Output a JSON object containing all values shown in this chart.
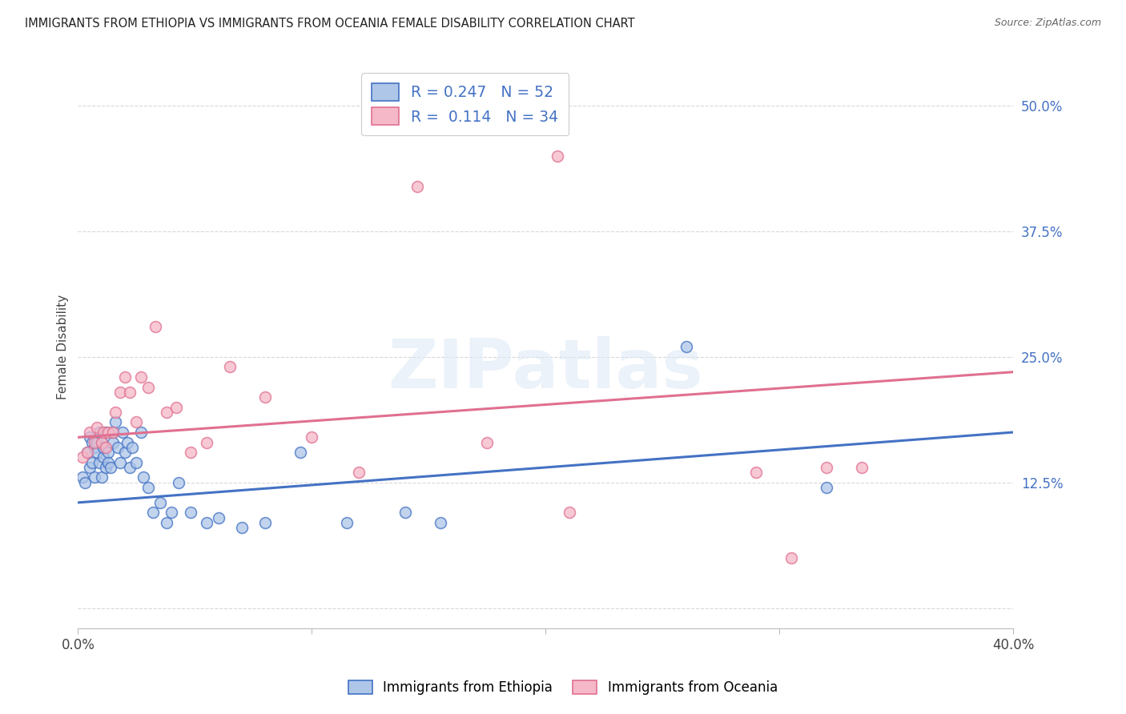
{
  "title": "IMMIGRANTS FROM ETHIOPIA VS IMMIGRANTS FROM OCEANIA FEMALE DISABILITY CORRELATION CHART",
  "source": "Source: ZipAtlas.com",
  "ylabel": "Female Disability",
  "ytick_labels": [
    "",
    "12.5%",
    "25.0%",
    "37.5%",
    "50.0%"
  ],
  "ytick_values": [
    0.0,
    0.125,
    0.25,
    0.375,
    0.5
  ],
  "xlim": [
    0.0,
    0.4
  ],
  "ylim": [
    -0.02,
    0.54
  ],
  "watermark_text": "ZIPatlas",
  "ethiopia_R": 0.247,
  "ethiopia_N": 52,
  "oceania_R": 0.114,
  "oceania_N": 34,
  "ethiopia_color": "#aec6e8",
  "oceania_color": "#f5b8c8",
  "ethiopia_line_color": "#4472c4",
  "oceania_line_color": "#e07090",
  "ethiopia_x": [
    0.002,
    0.003,
    0.004,
    0.005,
    0.005,
    0.006,
    0.006,
    0.007,
    0.007,
    0.008,
    0.008,
    0.009,
    0.009,
    0.01,
    0.01,
    0.011,
    0.011,
    0.012,
    0.012,
    0.013,
    0.013,
    0.014,
    0.015,
    0.015,
    0.016,
    0.017,
    0.018,
    0.019,
    0.02,
    0.021,
    0.022,
    0.023,
    0.025,
    0.027,
    0.028,
    0.03,
    0.032,
    0.035,
    0.038,
    0.04,
    0.043,
    0.048,
    0.055,
    0.06,
    0.07,
    0.08,
    0.095,
    0.115,
    0.14,
    0.155,
    0.26,
    0.32
  ],
  "ethiopia_y": [
    0.13,
    0.125,
    0.155,
    0.17,
    0.14,
    0.165,
    0.145,
    0.16,
    0.13,
    0.165,
    0.155,
    0.145,
    0.175,
    0.13,
    0.165,
    0.15,
    0.16,
    0.14,
    0.175,
    0.155,
    0.145,
    0.14,
    0.175,
    0.165,
    0.185,
    0.16,
    0.145,
    0.175,
    0.155,
    0.165,
    0.14,
    0.16,
    0.145,
    0.175,
    0.13,
    0.12,
    0.095,
    0.105,
    0.085,
    0.095,
    0.125,
    0.095,
    0.085,
    0.09,
    0.08,
    0.085,
    0.155,
    0.085,
    0.095,
    0.085,
    0.26,
    0.12
  ],
  "oceania_x": [
    0.002,
    0.004,
    0.005,
    0.007,
    0.008,
    0.01,
    0.011,
    0.012,
    0.013,
    0.015,
    0.016,
    0.018,
    0.02,
    0.022,
    0.025,
    0.027,
    0.03,
    0.033,
    0.038,
    0.042,
    0.048,
    0.055,
    0.065,
    0.08,
    0.1,
    0.12,
    0.145,
    0.175,
    0.205,
    0.21,
    0.29,
    0.305,
    0.32,
    0.335
  ],
  "oceania_y": [
    0.15,
    0.155,
    0.175,
    0.165,
    0.18,
    0.165,
    0.175,
    0.16,
    0.175,
    0.175,
    0.195,
    0.215,
    0.23,
    0.215,
    0.185,
    0.23,
    0.22,
    0.28,
    0.195,
    0.2,
    0.155,
    0.165,
    0.24,
    0.21,
    0.17,
    0.135,
    0.42,
    0.165,
    0.45,
    0.095,
    0.135,
    0.05,
    0.14,
    0.14
  ],
  "background_color": "#ffffff",
  "grid_color": "#d8d8d8",
  "eth_trend_x0": 0.0,
  "eth_trend_y0": 0.105,
  "eth_trend_x1": 0.4,
  "eth_trend_y1": 0.175,
  "oce_trend_x0": 0.0,
  "oce_trend_y0": 0.17,
  "oce_trend_x1": 0.4,
  "oce_trend_y1": 0.235
}
